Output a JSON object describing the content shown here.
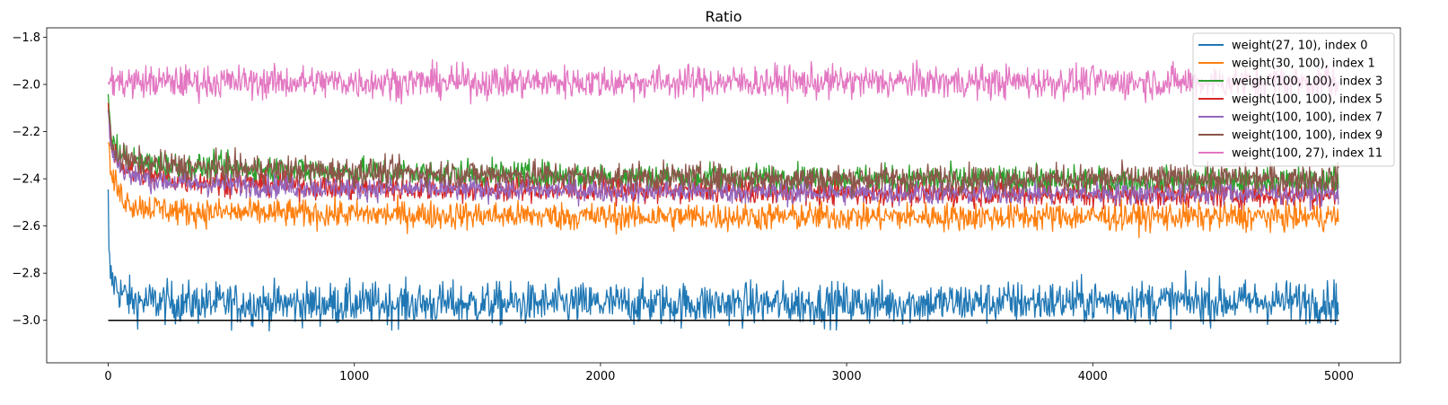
{
  "chart_data": {
    "type": "line",
    "title": "Ratio",
    "xlabel": "",
    "ylabel": "",
    "xlim": [
      -250,
      5250
    ],
    "ylim": [
      -3.18,
      -1.76
    ],
    "xticks": [
      0,
      1000,
      2000,
      3000,
      4000,
      5000
    ],
    "xtick_labels": [
      "0",
      "1000",
      "2000",
      "3000",
      "4000",
      "5000"
    ],
    "yticks": [
      -3.0,
      -2.8,
      -2.6,
      -2.4,
      -2.2,
      -2.0,
      -1.8
    ],
    "ytick_labels": [
      "−3.0",
      "−2.8",
      "−2.6",
      "−2.4",
      "−2.2",
      "−2.0",
      "−1.8"
    ],
    "grid": false,
    "legend_position": "top-right",
    "reference_line": {
      "x": [
        0,
        5000
      ],
      "y": -3.0,
      "color": "#000000"
    },
    "series": [
      {
        "name": "weight(27, 10), index 0",
        "color": "#1f77b4",
        "x": [
          0,
          2,
          10,
          50,
          100,
          500,
          1000,
          2000,
          3000,
          4000,
          5000
        ],
        "y": [
          -2.49,
          -2.72,
          -2.82,
          -2.88,
          -2.92,
          -2.93,
          -2.93,
          -2.93,
          -2.93,
          -2.92,
          -2.92
        ],
        "noise_amplitude": 0.045
      },
      {
        "name": "weight(30, 100), index 1",
        "color": "#ff7f0e",
        "x": [
          0,
          10,
          50,
          100,
          300,
          1000,
          2000,
          3000,
          4000,
          5000
        ],
        "y": [
          -2.24,
          -2.38,
          -2.47,
          -2.51,
          -2.54,
          -2.55,
          -2.56,
          -2.56,
          -2.56,
          -2.56
        ],
        "noise_amplitude": 0.03
      },
      {
        "name": "weight(100, 100), index 3",
        "color": "#2ca02c",
        "x": [
          0,
          10,
          50,
          100,
          300,
          1000,
          2000,
          3000,
          4000,
          5000
        ],
        "y": [
          -2.08,
          -2.22,
          -2.3,
          -2.33,
          -2.35,
          -2.37,
          -2.39,
          -2.4,
          -2.41,
          -2.41
        ],
        "noise_amplitude": 0.03
      },
      {
        "name": "weight(100, 100), index 5",
        "color": "#d62728",
        "x": [
          0,
          10,
          50,
          100,
          300,
          1000,
          2000,
          3000,
          4000,
          5000
        ],
        "y": [
          -2.1,
          -2.25,
          -2.34,
          -2.38,
          -2.41,
          -2.44,
          -2.45,
          -2.46,
          -2.47,
          -2.47
        ],
        "noise_amplitude": 0.025
      },
      {
        "name": "weight(100, 100), index 7",
        "color": "#9467bd",
        "x": [
          0,
          10,
          50,
          100,
          300,
          1000,
          2000,
          3000,
          4000,
          5000
        ],
        "y": [
          -2.12,
          -2.27,
          -2.35,
          -2.39,
          -2.42,
          -2.44,
          -2.45,
          -2.46,
          -2.46,
          -2.46
        ],
        "noise_amplitude": 0.025
      },
      {
        "name": "weight(100, 100), index 9",
        "color": "#8c564b",
        "x": [
          0,
          10,
          50,
          100,
          300,
          1000,
          2000,
          3000,
          4000,
          5000
        ],
        "y": [
          -2.1,
          -2.24,
          -2.31,
          -2.33,
          -2.35,
          -2.37,
          -2.39,
          -2.4,
          -2.4,
          -2.4
        ],
        "noise_amplitude": 0.03
      },
      {
        "name": "weight(100, 27), index 11",
        "color": "#e377c2",
        "x": [
          0,
          5,
          50,
          1000,
          2000,
          3000,
          4000,
          5000
        ],
        "y": [
          -1.97,
          -1.98,
          -1.99,
          -1.99,
          -1.99,
          -1.99,
          -1.99,
          -1.99
        ],
        "noise_amplitude": 0.035
      }
    ]
  }
}
